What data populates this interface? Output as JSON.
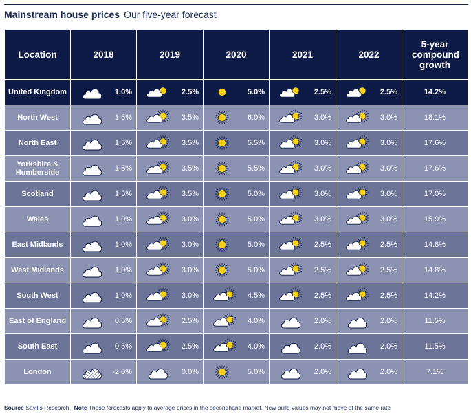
{
  "title": "Mainstream house prices",
  "subtitle": "Our five-year forecast",
  "footer": {
    "source_label": "Source",
    "source_text": "Savills Research",
    "note_label": "Note",
    "note_text": "These forecasts apply to average prices in the secondhand market. New build values may not move at the same rate"
  },
  "chart_data": {
    "type": "table",
    "columns": [
      "Location",
      "2018",
      "2019",
      "2020",
      "2021",
      "2022",
      "5-year compound growth"
    ],
    "rows": [
      {
        "location": "United Kingdom",
        "values": [
          {
            "v": "1.0%",
            "icon": "cloud"
          },
          {
            "v": "2.5%",
            "icon": "cloud-sun"
          },
          {
            "v": "5.0%",
            "icon": "sun"
          },
          {
            "v": "2.5%",
            "icon": "cloud-sun"
          },
          {
            "v": "2.5%",
            "icon": "cloud-sun"
          }
        ],
        "growth": "14.2%"
      },
      {
        "location": "North West",
        "values": [
          {
            "v": "1.5%",
            "icon": "cloud"
          },
          {
            "v": "3.5%",
            "icon": "cloud-sun"
          },
          {
            "v": "6.0%",
            "icon": "sun"
          },
          {
            "v": "3.0%",
            "icon": "cloud-sun"
          },
          {
            "v": "3.0%",
            "icon": "cloud-sun"
          }
        ],
        "growth": "18.1%"
      },
      {
        "location": "North East",
        "values": [
          {
            "v": "1.5%",
            "icon": "cloud"
          },
          {
            "v": "3.5%",
            "icon": "cloud-sun"
          },
          {
            "v": "5.5%",
            "icon": "sun"
          },
          {
            "v": "3.0%",
            "icon": "cloud-sun"
          },
          {
            "v": "3.0%",
            "icon": "cloud-sun"
          }
        ],
        "growth": "17.6%"
      },
      {
        "location": "Yorkshire & Humberside",
        "values": [
          {
            "v": "1.5%",
            "icon": "cloud"
          },
          {
            "v": "3.5%",
            "icon": "cloud-sun"
          },
          {
            "v": "5.5%",
            "icon": "sun"
          },
          {
            "v": "3.0%",
            "icon": "cloud-sun"
          },
          {
            "v": "3.0%",
            "icon": "cloud-sun"
          }
        ],
        "growth": "17.6%"
      },
      {
        "location": "Scotland",
        "values": [
          {
            "v": "1.5%",
            "icon": "cloud"
          },
          {
            "v": "3.5%",
            "icon": "cloud-sun"
          },
          {
            "v": "5.0%",
            "icon": "sun"
          },
          {
            "v": "3.0%",
            "icon": "cloud-sun"
          },
          {
            "v": "3.0%",
            "icon": "cloud-sun"
          }
        ],
        "growth": "17.0%"
      },
      {
        "location": "Wales",
        "values": [
          {
            "v": "1.0%",
            "icon": "cloud"
          },
          {
            "v": "3.0%",
            "icon": "cloud-sun"
          },
          {
            "v": "5.0%",
            "icon": "sun"
          },
          {
            "v": "3.0%",
            "icon": "cloud-sun"
          },
          {
            "v": "3.0%",
            "icon": "cloud-sun"
          }
        ],
        "growth": "15.9%"
      },
      {
        "location": "East Midlands",
        "values": [
          {
            "v": "1.0%",
            "icon": "cloud"
          },
          {
            "v": "3.0%",
            "icon": "cloud-sun"
          },
          {
            "v": "5.0%",
            "icon": "sun"
          },
          {
            "v": "2.5%",
            "icon": "cloud-sun"
          },
          {
            "v": "2.5%",
            "icon": "cloud-sun"
          }
        ],
        "growth": "14.8%"
      },
      {
        "location": "West Midlands",
        "values": [
          {
            "v": "1.0%",
            "icon": "cloud"
          },
          {
            "v": "3.0%",
            "icon": "cloud-sun"
          },
          {
            "v": "5.0%",
            "icon": "sun"
          },
          {
            "v": "2.5%",
            "icon": "cloud-sun"
          },
          {
            "v": "2.5%",
            "icon": "cloud-sun"
          }
        ],
        "growth": "14.8%"
      },
      {
        "location": "South West",
        "values": [
          {
            "v": "1.0%",
            "icon": "cloud"
          },
          {
            "v": "3.0%",
            "icon": "cloud-sun"
          },
          {
            "v": "4.5%",
            "icon": "cloud-sun"
          },
          {
            "v": "2.5%",
            "icon": "cloud-sun"
          },
          {
            "v": "2.5%",
            "icon": "cloud-sun"
          }
        ],
        "growth": "14.2%"
      },
      {
        "location": "East of England",
        "values": [
          {
            "v": "0.5%",
            "icon": "cloud"
          },
          {
            "v": "2.5%",
            "icon": "cloud-sun"
          },
          {
            "v": "4.0%",
            "icon": "cloud-sun"
          },
          {
            "v": "2.0%",
            "icon": "cloud"
          },
          {
            "v": "2.0%",
            "icon": "cloud"
          }
        ],
        "growth": "11.5%"
      },
      {
        "location": "South East",
        "values": [
          {
            "v": "0.5%",
            "icon": "cloud"
          },
          {
            "v": "2.5%",
            "icon": "cloud-sun"
          },
          {
            "v": "4.0%",
            "icon": "cloud-sun"
          },
          {
            "v": "2.0%",
            "icon": "cloud"
          },
          {
            "v": "2.0%",
            "icon": "cloud"
          }
        ],
        "growth": "11.5%"
      },
      {
        "location": "London",
        "values": [
          {
            "v": "-2.0%",
            "icon": "rain-cloud"
          },
          {
            "v": "0.0%",
            "icon": "cloud"
          },
          {
            "v": "5.0%",
            "icon": "sun"
          },
          {
            "v": "2.0%",
            "icon": "cloud"
          },
          {
            "v": "2.0%",
            "icon": "cloud"
          }
        ],
        "growth": "7.1%"
      }
    ]
  },
  "colors": {
    "header_bg": "#0e1b47",
    "row_dark": "#6c7598",
    "row_light": "#8c93b2",
    "sun": "#f7d117",
    "title_text": "#1b2a52"
  }
}
